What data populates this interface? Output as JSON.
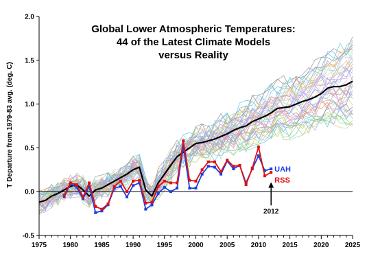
{
  "chart_data": {
    "type": "line",
    "title": [
      "Global Lower Atmospheric Temperatures:",
      "44 of the Latest Climate Models",
      "versus Reality"
    ],
    "xlabel": "",
    "ylabel": "T Departure from 1979-83 avg. (deg. C)",
    "xlim": [
      1975,
      2025
    ],
    "ylim": [
      -0.5,
      2.0
    ],
    "x_ticks": [
      1975,
      1980,
      1985,
      1990,
      1995,
      2000,
      2005,
      2010,
      2015,
      2020,
      2025
    ],
    "y_ticks": [
      -0.5,
      0.0,
      0.5,
      1.0,
      1.5,
      2.0
    ],
    "y_tick_labels": [
      "-0.5",
      "0.0",
      "0.5",
      "1.0",
      "1.5",
      "2.0"
    ],
    "grid": false,
    "model_ensemble": {
      "count": 44,
      "start_year": 1975,
      "end_year": 2025,
      "spread_colors": [
        "#7fa6ff",
        "#ff8080",
        "#9ad89a",
        "#c8a0e8",
        "#f0c060",
        "#60c8d8",
        "#d0d0d0",
        "#a0a0ff",
        "#e0a0c0",
        "#b0d060",
        "#909090",
        "#80e0c0"
      ]
    },
    "series": [
      {
        "name": "",
        "role": "multi-model mean",
        "color": "#000000",
        "x": [
          1975,
          1976,
          1977,
          1978,
          1979,
          1980,
          1981,
          1982,
          1983,
          1984,
          1985,
          1986,
          1987,
          1988,
          1989,
          1990,
          1991,
          1992,
          1993,
          1994,
          1995,
          1996,
          1997,
          1998,
          1999,
          2000,
          2001,
          2002,
          2003,
          2004,
          2005,
          2006,
          2007,
          2008,
          2009,
          2010,
          2011,
          2012,
          2013,
          2014,
          2015,
          2016,
          2017,
          2018,
          2019,
          2020,
          2021,
          2022,
          2023,
          2024,
          2025
        ],
        "y": [
          -0.12,
          -0.1,
          -0.05,
          -0.02,
          0.02,
          0.06,
          0.08,
          0.02,
          -0.05,
          0.02,
          0.04,
          0.08,
          0.12,
          0.16,
          0.2,
          0.25,
          0.28,
          0.02,
          -0.05,
          0.1,
          0.2,
          0.3,
          0.4,
          0.45,
          0.5,
          0.55,
          0.56,
          0.58,
          0.6,
          0.63,
          0.66,
          0.7,
          0.73,
          0.75,
          0.8,
          0.83,
          0.86,
          0.9,
          0.95,
          0.96,
          0.97,
          1.0,
          1.03,
          1.05,
          1.08,
          1.12,
          1.18,
          1.2,
          1.2,
          1.22,
          1.26
        ]
      },
      {
        "name": "UAH",
        "color": "#1f3fe0",
        "x": [
          1979,
          1980,
          1981,
          1982,
          1983,
          1984,
          1985,
          1986,
          1987,
          1988,
          1989,
          1990,
          1991,
          1992,
          1993,
          1994,
          1995,
          1996,
          1997,
          1998,
          1999,
          2000,
          2001,
          2002,
          2003,
          2004,
          2005,
          2006,
          2007,
          2008,
          2009,
          2010,
          2011,
          2012
        ],
        "y": [
          -0.06,
          0.09,
          0.05,
          -0.08,
          0.06,
          -0.24,
          -0.22,
          -0.15,
          0.04,
          0.06,
          -0.06,
          0.07,
          0.1,
          -0.2,
          -0.15,
          -0.02,
          0.05,
          0.0,
          0.04,
          0.52,
          0.04,
          0.04,
          0.2,
          0.29,
          0.28,
          0.2,
          0.35,
          0.26,
          0.3,
          0.1,
          0.26,
          0.41,
          0.24,
          0.26
        ]
      },
      {
        "name": "RSS",
        "color": "#e01010",
        "x": [
          1979,
          1980,
          1981,
          1982,
          1983,
          1984,
          1985,
          1986,
          1987,
          1988,
          1989,
          1990,
          1991,
          1992,
          1993,
          1994,
          1995,
          1996,
          1997,
          1998,
          1999,
          2000,
          2001,
          2002,
          2003,
          2004,
          2005,
          2006,
          2007,
          2008,
          2009,
          2010,
          2011,
          2012
        ],
        "y": [
          -0.04,
          0.1,
          0.08,
          -0.06,
          0.1,
          -0.17,
          -0.2,
          -0.14,
          0.06,
          0.12,
          0.0,
          0.12,
          0.13,
          -0.13,
          -0.12,
          0.06,
          0.12,
          0.1,
          0.1,
          0.58,
          0.13,
          0.12,
          0.25,
          0.34,
          0.34,
          0.23,
          0.36,
          0.29,
          0.3,
          0.08,
          0.27,
          0.51,
          0.18,
          0.22
        ]
      }
    ],
    "annotations": [
      {
        "text": "2012",
        "x": 2012,
        "y": 0.0
      }
    ]
  }
}
